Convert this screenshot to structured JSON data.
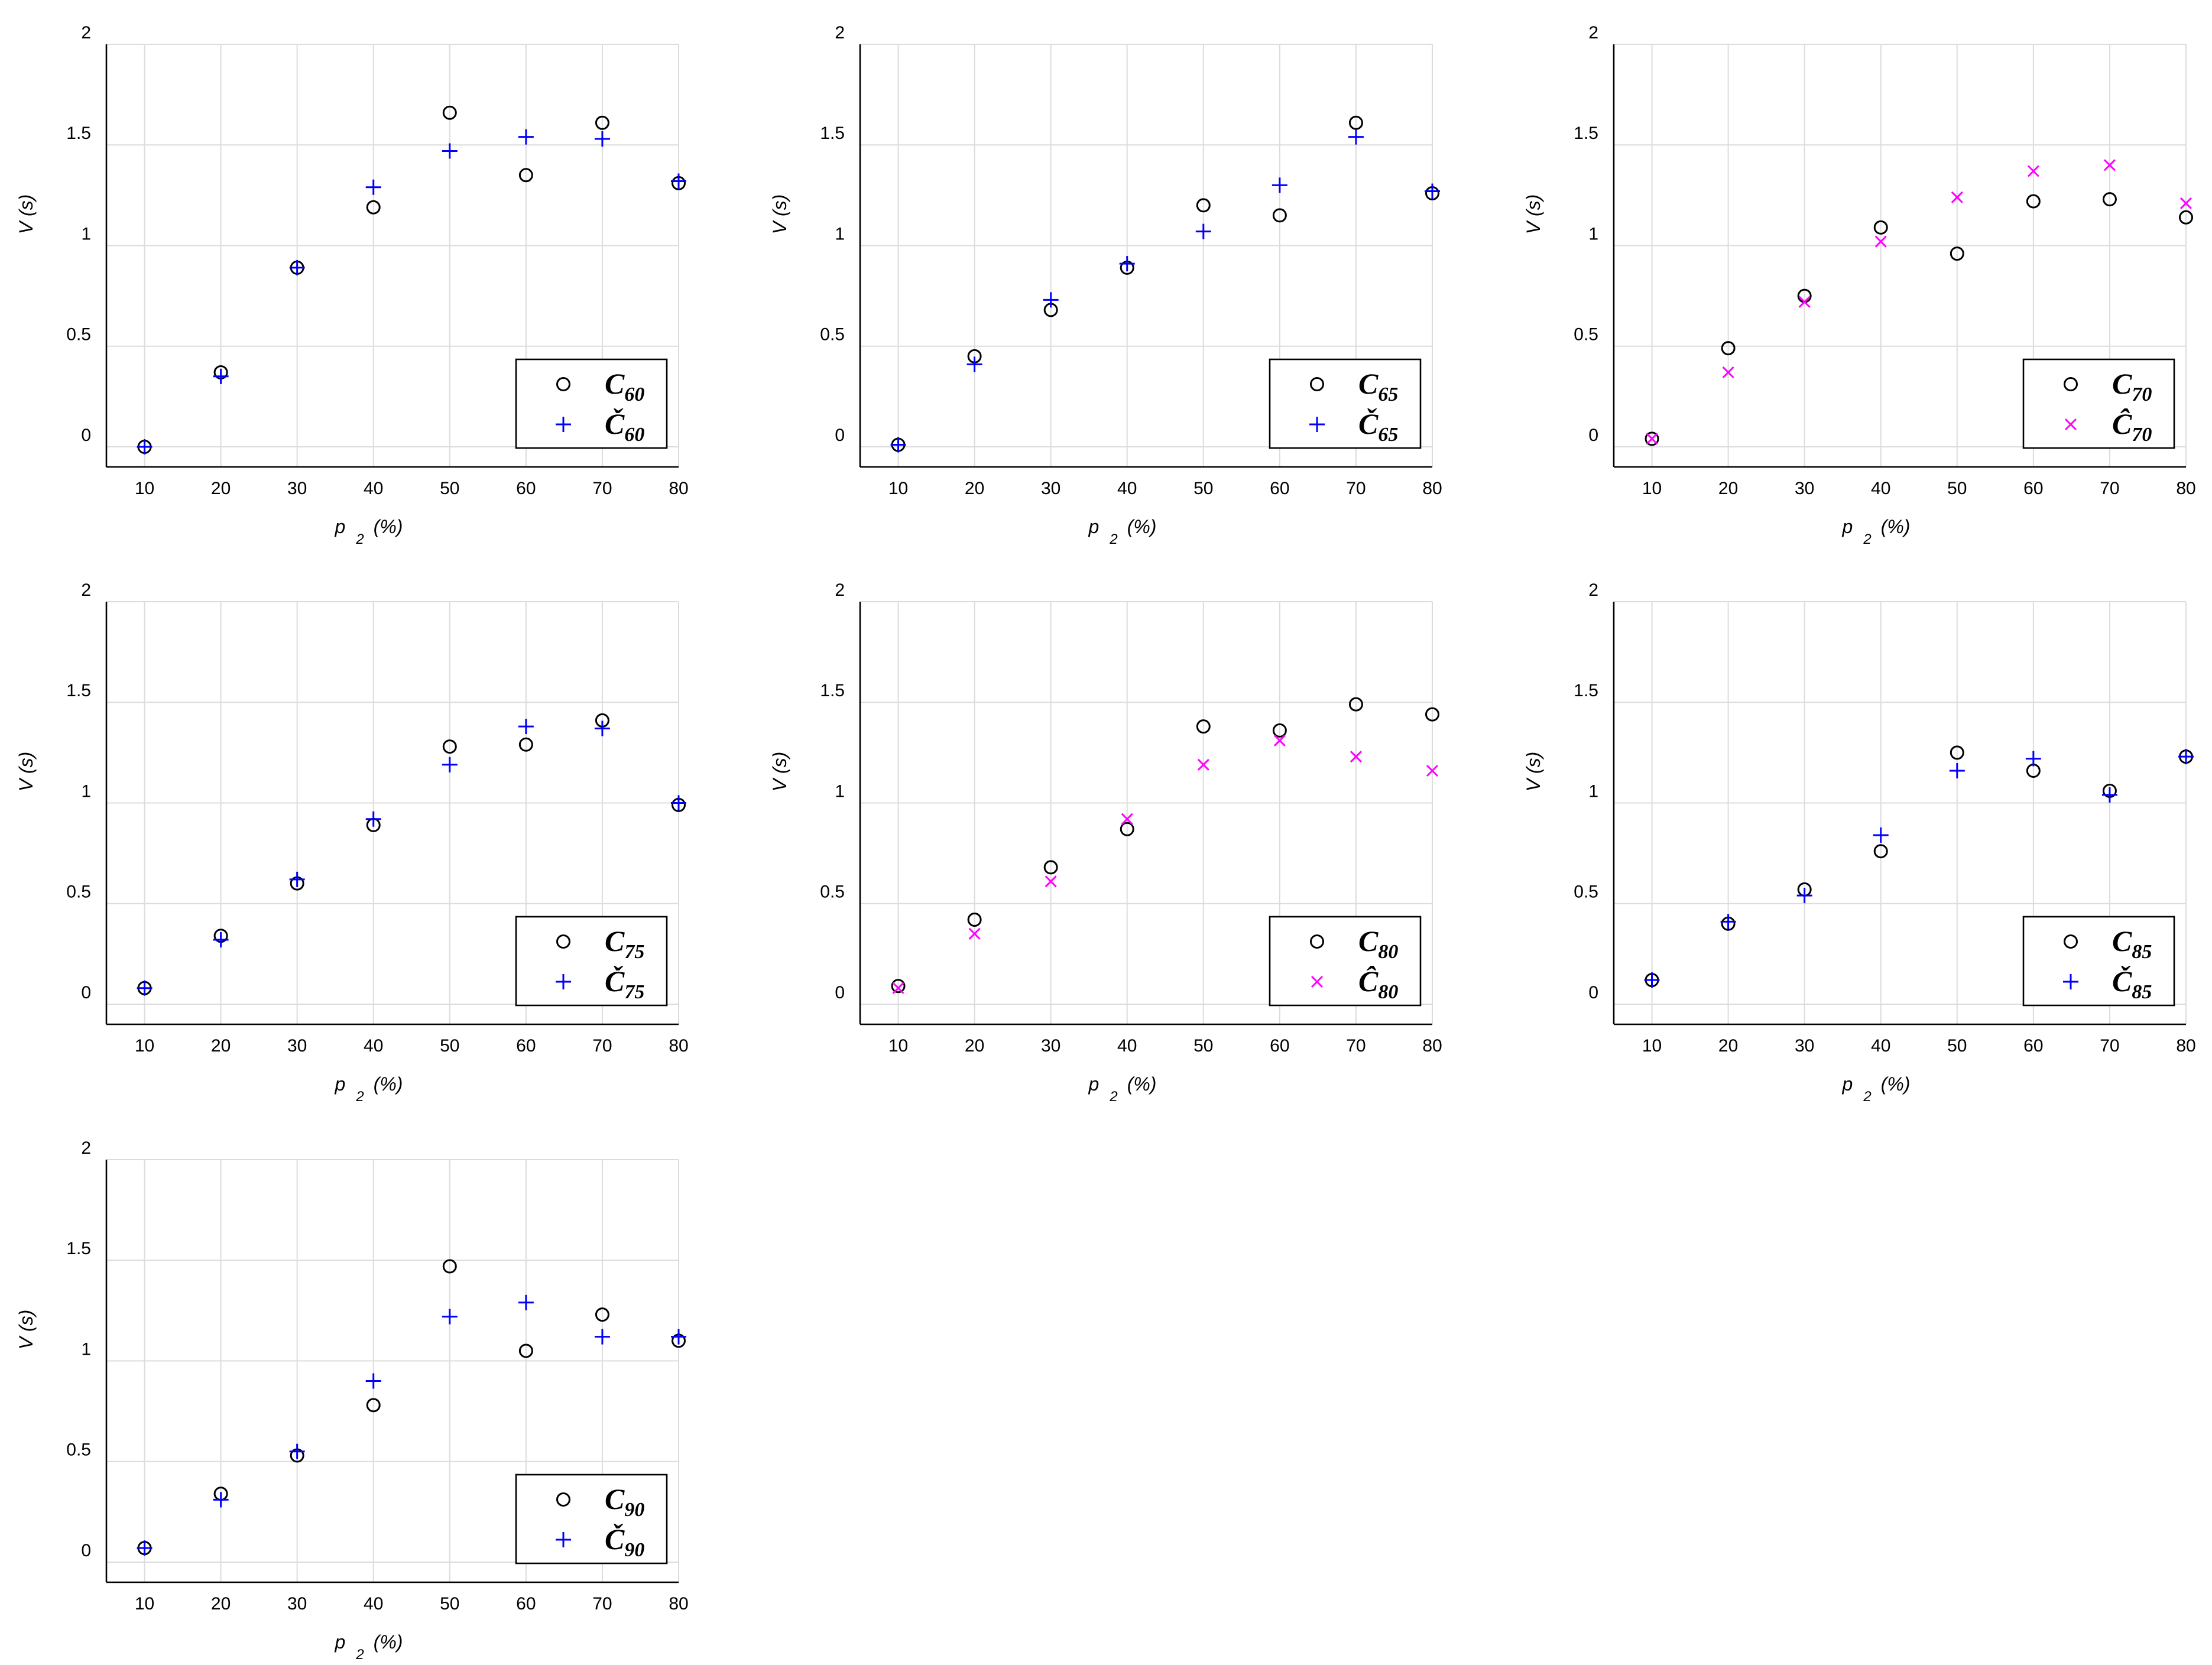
{
  "colors": {
    "circle": "#000000",
    "plus": "#0000ff",
    "cross": "#ff00ff"
  },
  "chart_data": [
    {
      "type": "scatter",
      "xlabel": "p",
      "xlabel_sub": "2",
      "xlabel_unit": "(%)",
      "ylabel": "V (s)",
      "x": [
        10,
        20,
        30,
        40,
        50,
        60,
        70,
        80
      ],
      "xticks": [
        "10",
        "20",
        "30",
        "40",
        "50",
        "60",
        "70",
        "80"
      ],
      "yticks": [
        "0",
        "0.5",
        "1",
        "1.5",
        "2"
      ],
      "xlim": [
        5,
        80
      ],
      "ylim": [
        -0.1,
        2
      ],
      "grid": true,
      "legend_position": "bottom-right",
      "series": [
        {
          "name": "C",
          "sub": "60",
          "marker": "circle",
          "color": "#000000",
          "values": [
            0.0,
            0.37,
            0.89,
            1.19,
            1.66,
            1.35,
            1.61,
            1.31
          ]
        },
        {
          "name": "Č",
          "sub": "60",
          "marker": "plus",
          "color": "#0000ff",
          "values": [
            0.0,
            0.35,
            0.89,
            1.29,
            1.47,
            1.54,
            1.53,
            1.32
          ]
        }
      ]
    },
    {
      "type": "scatter",
      "xlabel": "p",
      "xlabel_sub": "2",
      "xlabel_unit": "(%)",
      "ylabel": "V (s)",
      "x": [
        10,
        20,
        30,
        40,
        50,
        60,
        70,
        80
      ],
      "xticks": [
        "10",
        "20",
        "30",
        "40",
        "50",
        "60",
        "70",
        "80"
      ],
      "yticks": [
        "0",
        "0.5",
        "1",
        "1.5",
        "2"
      ],
      "xlim": [
        5,
        80
      ],
      "ylim": [
        -0.1,
        2
      ],
      "grid": true,
      "legend_position": "bottom-right",
      "series": [
        {
          "name": "C",
          "sub": "65",
          "marker": "circle",
          "color": "#000000",
          "values": [
            0.01,
            0.45,
            0.68,
            0.89,
            1.2,
            1.15,
            1.61,
            1.26
          ]
        },
        {
          "name": "Č",
          "sub": "65",
          "marker": "plus",
          "color": "#0000ff",
          "values": [
            0.01,
            0.41,
            0.73,
            0.91,
            1.07,
            1.3,
            1.54,
            1.27
          ]
        }
      ]
    },
    {
      "type": "scatter",
      "xlabel": "p",
      "xlabel_sub": "2",
      "xlabel_unit": "(%)",
      "ylabel": "V (s)",
      "x": [
        10,
        20,
        30,
        40,
        50,
        60,
        70,
        80
      ],
      "xticks": [
        "10",
        "20",
        "30",
        "40",
        "50",
        "60",
        "70",
        "80"
      ],
      "yticks": [
        "0",
        "0.5",
        "1",
        "1.5",
        "2"
      ],
      "xlim": [
        5,
        80
      ],
      "ylim": [
        -0.1,
        2
      ],
      "grid": true,
      "legend_position": "bottom-right",
      "series": [
        {
          "name": "C",
          "sub": "70",
          "marker": "circle",
          "color": "#000000",
          "values": [
            0.04,
            0.49,
            0.75,
            1.09,
            0.96,
            1.22,
            1.23,
            1.14
          ]
        },
        {
          "name": "Ĉ",
          "sub": "70",
          "marker": "cross",
          "color": "#ff00ff",
          "values": [
            0.04,
            0.37,
            0.72,
            1.02,
            1.24,
            1.37,
            1.4,
            1.21
          ]
        }
      ]
    },
    {
      "type": "scatter",
      "xlabel": "p",
      "xlabel_sub": "2",
      "xlabel_unit": "(%)",
      "ylabel": "V (s)",
      "x": [
        10,
        20,
        30,
        40,
        50,
        60,
        70,
        80
      ],
      "xticks": [
        "10",
        "20",
        "30",
        "40",
        "50",
        "60",
        "70",
        "80"
      ],
      "yticks": [
        "0",
        "0.5",
        "1",
        "1.5",
        "2"
      ],
      "xlim": [
        5,
        80
      ],
      "ylim": [
        -0.1,
        2
      ],
      "grid": true,
      "legend_position": "bottom-right",
      "series": [
        {
          "name": "C",
          "sub": "75",
          "marker": "circle",
          "color": "#000000",
          "values": [
            0.08,
            0.34,
            0.6,
            0.89,
            1.28,
            1.29,
            1.41,
            0.99
          ]
        },
        {
          "name": "Č",
          "sub": "75",
          "marker": "plus",
          "color": "#0000ff",
          "values": [
            0.08,
            0.32,
            0.62,
            0.92,
            1.19,
            1.38,
            1.37,
            1.0
          ]
        }
      ]
    },
    {
      "type": "scatter",
      "xlabel": "p",
      "xlabel_sub": "2",
      "xlabel_unit": "(%)",
      "ylabel": "V (s)",
      "x": [
        10,
        20,
        30,
        40,
        50,
        60,
        70,
        80
      ],
      "xticks": [
        "10",
        "20",
        "30",
        "40",
        "50",
        "60",
        "70",
        "80"
      ],
      "yticks": [
        "0",
        "0.5",
        "1",
        "1.5",
        "2"
      ],
      "xlim": [
        5,
        80
      ],
      "ylim": [
        -0.1,
        2
      ],
      "grid": true,
      "legend_position": "bottom-right",
      "series": [
        {
          "name": "C",
          "sub": "80",
          "marker": "circle",
          "color": "#000000",
          "values": [
            0.09,
            0.42,
            0.68,
            0.87,
            1.38,
            1.36,
            1.49,
            1.44
          ]
        },
        {
          "name": "Ĉ",
          "sub": "80",
          "marker": "cross",
          "color": "#ff00ff",
          "values": [
            0.08,
            0.35,
            0.61,
            0.92,
            1.19,
            1.31,
            1.23,
            1.16
          ]
        }
      ]
    },
    {
      "type": "scatter",
      "xlabel": "p",
      "xlabel_sub": "2",
      "xlabel_unit": "(%)",
      "ylabel": "V (s)",
      "x": [
        10,
        20,
        30,
        40,
        50,
        60,
        70,
        80
      ],
      "xticks": [
        "10",
        "20",
        "30",
        "40",
        "50",
        "60",
        "70",
        "80"
      ],
      "yticks": [
        "0",
        "0.5",
        "1",
        "1.5",
        "2"
      ],
      "xlim": [
        5,
        80
      ],
      "ylim": [
        -0.1,
        2
      ],
      "grid": true,
      "legend_position": "bottom-right",
      "series": [
        {
          "name": "C",
          "sub": "85",
          "marker": "circle",
          "color": "#000000",
          "values": [
            0.12,
            0.4,
            0.57,
            0.76,
            1.25,
            1.16,
            1.06,
            1.23
          ]
        },
        {
          "name": "Č",
          "sub": "85",
          "marker": "plus",
          "color": "#0000ff",
          "values": [
            0.12,
            0.41,
            0.54,
            0.84,
            1.16,
            1.22,
            1.04,
            1.23
          ]
        }
      ]
    },
    {
      "type": "scatter",
      "xlabel": "p",
      "xlabel_sub": "2",
      "xlabel_unit": "(%)",
      "ylabel": "V (s)",
      "x": [
        10,
        20,
        30,
        40,
        50,
        60,
        70,
        80
      ],
      "xticks": [
        "10",
        "20",
        "30",
        "40",
        "50",
        "60",
        "70",
        "80"
      ],
      "yticks": [
        "0",
        "0.5",
        "1",
        "1.5",
        "2"
      ],
      "xlim": [
        5,
        80
      ],
      "ylim": [
        -0.1,
        2
      ],
      "grid": true,
      "legend_position": "bottom-right",
      "series": [
        {
          "name": "C",
          "sub": "90",
          "marker": "circle",
          "color": "#000000",
          "values": [
            0.07,
            0.34,
            0.53,
            0.78,
            1.47,
            1.05,
            1.23,
            1.1
          ]
        },
        {
          "name": "Č",
          "sub": "90",
          "marker": "plus",
          "color": "#0000ff",
          "values": [
            0.07,
            0.31,
            0.55,
            0.9,
            1.22,
            1.29,
            1.12,
            1.12
          ]
        }
      ]
    }
  ]
}
